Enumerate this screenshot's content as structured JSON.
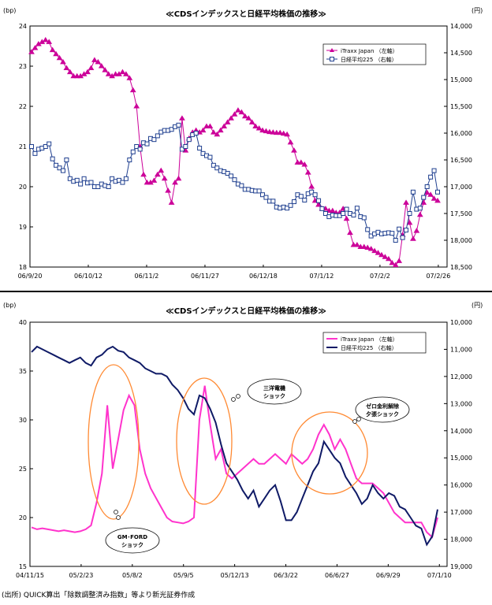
{
  "chart_data": [
    {
      "type": "line",
      "title": "≪CDSインデックスと日経平均株価の推移≫",
      "left_unit": "(bp)",
      "right_unit": "(円)",
      "x_ticks": [
        "06/9/20",
        "06/10/12",
        "06/11/2",
        "06/11/27",
        "06/12/18",
        "07/1/12",
        "07/2/2",
        "07/2/26"
      ],
      "y_left_ticks": [
        "18",
        "19",
        "20",
        "21",
        "22",
        "23",
        "24"
      ],
      "y_left_lim": [
        18,
        24
      ],
      "y_right_ticks": [
        "14,000",
        "14,500",
        "15,000",
        "15,500",
        "16,000",
        "16,500",
        "17,000",
        "17,500",
        "18,000",
        "18,500"
      ],
      "y_right_lim": [
        18500,
        14000
      ],
      "legend": [
        "iTraxx Japan  （左軸）",
        "日経平均225  （右軸）"
      ],
      "legend_position": "top-right",
      "series": [
        {
          "name": "iTraxx Japan  （左軸）",
          "axis": "left",
          "color": "#cc0099",
          "marker": "triangle",
          "values": [
            23.35,
            23.45,
            23.55,
            23.6,
            23.65,
            23.6,
            23.4,
            23.3,
            23.2,
            23.1,
            22.95,
            22.85,
            22.75,
            22.75,
            22.75,
            22.8,
            22.85,
            22.95,
            23.15,
            23.1,
            23.0,
            22.9,
            22.8,
            22.75,
            22.8,
            22.8,
            22.85,
            22.8,
            22.7,
            22.4,
            22.0,
            21.0,
            20.3,
            20.1,
            20.1,
            20.15,
            20.3,
            20.4,
            20.2,
            19.9,
            19.6,
            20.1,
            20.2,
            21.7,
            20.9,
            21.2,
            21.35,
            21.4,
            21.35,
            21.4,
            21.5,
            21.5,
            21.35,
            21.3,
            21.4,
            21.5,
            21.6,
            21.7,
            21.8,
            21.9,
            21.85,
            21.75,
            21.7,
            21.6,
            21.5,
            21.45,
            21.4,
            21.38,
            21.36,
            21.35,
            21.34,
            21.34,
            21.32,
            21.3,
            21.1,
            20.9,
            20.6,
            20.6,
            20.55,
            20.35,
            20.0,
            19.65,
            19.55,
            19.45,
            19.45,
            19.4,
            19.4,
            19.35,
            19.35,
            19.45,
            19.2,
            18.85,
            18.55,
            18.55,
            18.5,
            18.5,
            18.48,
            18.45,
            18.4,
            18.35,
            18.3,
            18.25,
            18.2,
            18.1,
            18.05,
            18.15,
            18.8,
            19.6,
            19.1,
            18.7,
            18.9,
            19.3,
            19.6,
            19.85,
            19.8,
            19.7,
            19.65
          ]
        },
        {
          "name": "日経平均225  （右軸）",
          "axis": "right",
          "color": "#1f3f8f",
          "marker": "square",
          "values": [
            16250,
            16380,
            16300,
            16280,
            16250,
            16200,
            16480,
            16600,
            16650,
            16700,
            16500,
            16850,
            16900,
            16880,
            16950,
            16850,
            16930,
            16920,
            17000,
            17000,
            16950,
            16980,
            17000,
            16850,
            16900,
            16880,
            16920,
            16850,
            16500,
            16350,
            16250,
            16300,
            16180,
            16200,
            16100,
            16120,
            16050,
            15980,
            15950,
            15950,
            15930,
            15880,
            15850,
            16300,
            16250,
            16120,
            16030,
            16000,
            16280,
            16380,
            16420,
            16450,
            16600,
            16650,
            16700,
            16720,
            16750,
            16800,
            16870,
            16950,
            16980,
            17050,
            17050,
            17070,
            17080,
            17080,
            17150,
            17200,
            17270,
            17270,
            17380,
            17400,
            17380,
            17400,
            17350,
            17280,
            17150,
            17180,
            17250,
            17130,
            17100,
            17150,
            17260,
            17410,
            17500,
            17560,
            17530,
            17540,
            17540,
            17500,
            17420,
            17500,
            17530,
            17400,
            17560,
            17580,
            17800,
            17920,
            17880,
            17850,
            17880,
            17870,
            17860,
            17870,
            18000,
            17790,
            17950,
            17810,
            17500,
            17100,
            17420,
            17400,
            17200,
            17000,
            16820,
            16700,
            17100
          ]
        }
      ]
    },
    {
      "type": "line",
      "title": "≪CDSインデックスと日経平均株価の推移≫",
      "left_unit": "(bp)",
      "right_unit": "(円)",
      "x_ticks": [
        "04/11/15",
        "05/2/23",
        "05/8/2",
        "05/9/5",
        "05/12/13",
        "06/3/22",
        "06/6/27",
        "06/9/29",
        "07/1/10"
      ],
      "y_left_ticks": [
        "15",
        "20",
        "25",
        "30",
        "35",
        "40"
      ],
      "y_left_lim": [
        15,
        40
      ],
      "y_right_ticks": [
        "10,000",
        "11,000",
        "12,000",
        "13,000",
        "14,000",
        "15,000",
        "16,000",
        "17,000",
        "18,000",
        "19,000"
      ],
      "y_right_lim": [
        19000,
        10000
      ],
      "legend": [
        "iTraxx Japan  （左軸）",
        "日経平均225  （右軸）"
      ],
      "legend_position": "top-right",
      "annotations": [
        "GM･FORD\nショック",
        "三洋電機\nショック",
        "ゼロ金利解除\n夕張ショック"
      ],
      "series": [
        {
          "name": "iTraxx Japan  （左軸）",
          "axis": "left",
          "color": "#ff33cc",
          "values": [
            19.0,
            18.8,
            18.9,
            18.8,
            18.7,
            18.6,
            18.7,
            18.6,
            18.5,
            18.6,
            18.8,
            19.2,
            21.5,
            24.5,
            31.5,
            25.0,
            28.0,
            31.0,
            32.5,
            31.5,
            27.0,
            24.5,
            23.0,
            22.0,
            21.0,
            20.0,
            19.6,
            19.5,
            19.4,
            19.6,
            20.0,
            30.0,
            33.5,
            29.5,
            26.0,
            27.0,
            24.5,
            24.0,
            24.5,
            25.0,
            25.5,
            26.0,
            25.5,
            25.5,
            26.0,
            26.5,
            26.0,
            25.5,
            26.5,
            26.0,
            25.5,
            26.0,
            27.0,
            28.5,
            29.5,
            28.5,
            27.0,
            28.0,
            27.0,
            25.5,
            24.0,
            23.5,
            23.5,
            23.5,
            23.0,
            22.5,
            21.5,
            20.5,
            20.0,
            19.5,
            19.5,
            19.5,
            19.5,
            18.5,
            18.0,
            20.0
          ]
        },
        {
          "name": "日経平均225  （右軸）",
          "axis": "right",
          "color": "#0f1a66",
          "values": [
            11100,
            10900,
            11000,
            11100,
            11200,
            11300,
            11400,
            11500,
            11400,
            11300,
            11500,
            11600,
            11300,
            11200,
            11000,
            10900,
            11050,
            11100,
            11300,
            11400,
            11500,
            11700,
            11800,
            11900,
            11900,
            12000,
            12300,
            12500,
            12800,
            13200,
            13400,
            12700,
            12800,
            13200,
            13700,
            14500,
            15200,
            15500,
            15800,
            16200,
            16500,
            16200,
            16800,
            16500,
            16200,
            16000,
            16600,
            17300,
            17300,
            17000,
            16500,
            16000,
            15500,
            15200,
            14400,
            14700,
            15000,
            15200,
            15700,
            16000,
            16300,
            16700,
            16500,
            16000,
            16300,
            16500,
            16300,
            16400,
            16800,
            16900,
            17200,
            17500,
            17600,
            18200,
            17900,
            16900
          ]
        }
      ]
    }
  ],
  "source_note": "(出所) QUICK算出「除数調整済み指数」等より新光証券作成"
}
